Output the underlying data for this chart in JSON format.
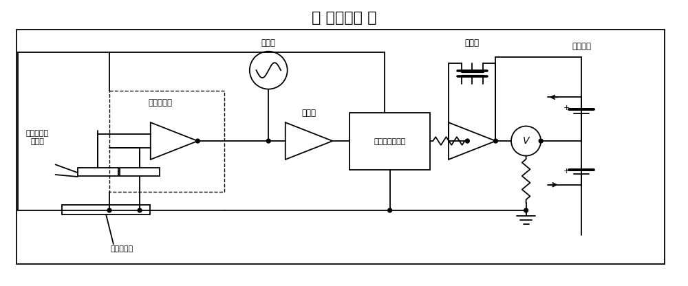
{
  "title": "＜ 现有技术 ＞",
  "title_fontsize": 16,
  "bg_color": "#ffffff",
  "line_color": "#000000",
  "text_color": "#000000",
  "labels": {
    "sensor": "振动开尔文\n传感器",
    "preamp": "前置放大器",
    "oscillator": "振荡器",
    "amplifier": "放大器",
    "phase_detector": "相位灵敏调解器",
    "integrator": "积分器",
    "self_power": "自举电源",
    "charged_surface": "带电体表面"
  },
  "figsize": [
    10.0,
    4.16
  ],
  "dpi": 100
}
